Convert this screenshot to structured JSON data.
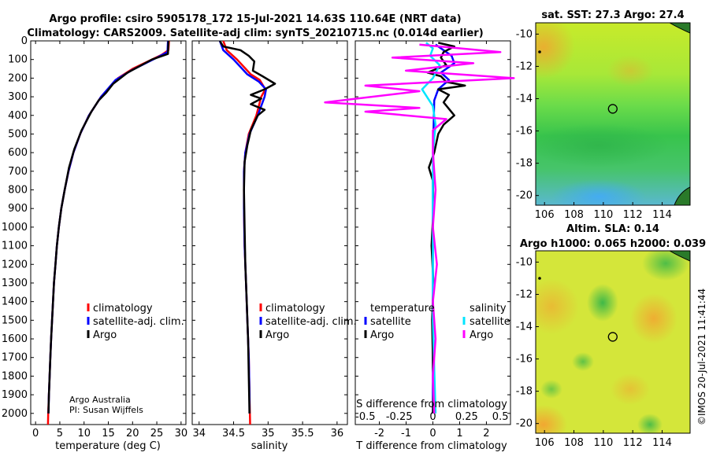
{
  "header": {
    "line1": "Argo profile: csiro 5905178_172 15-Jul-2021 14.63S 110.64E (NRT data)",
    "line2": "Climatology: CARS2009. Satellite-adj clim: synTS_20210715.nc (0.014d earlier)"
  },
  "colors": {
    "climatology": "#ff0000",
    "satellite": "#0000ff",
    "argo": "#000000",
    "sat_s": "#00e5ff",
    "argo_s": "#ff00ff"
  },
  "chart_data": [
    {
      "id": "temperature",
      "type": "line",
      "xlabel": "temperature (deg C)",
      "xlim": [
        -1,
        31
      ],
      "xticks": [
        0,
        5,
        10,
        15,
        20,
        25,
        30
      ],
      "ylim": [
        0,
        2060
      ],
      "yticks": [
        0,
        100,
        200,
        300,
        400,
        500,
        600,
        700,
        800,
        900,
        1000,
        1100,
        1200,
        1300,
        1400,
        1500,
        1600,
        1700,
        1800,
        1900,
        2000
      ],
      "legend": [
        "climatology",
        "satellite-adj. clim.",
        "Argo"
      ],
      "note": [
        "Argo Australia",
        "PI: Susan Wijffels"
      ],
      "series": [
        {
          "name": "climatology",
          "color": "#ff0000",
          "points": [
            [
              27.5,
              0
            ],
            [
              27.4,
              50
            ],
            [
              26,
              75
            ],
            [
              20,
              150
            ],
            [
              17,
              200
            ],
            [
              13.5,
              300
            ],
            [
              11,
              400
            ],
            [
              9.2,
              500
            ],
            [
              7.8,
              600
            ],
            [
              6.8,
              700
            ],
            [
              6,
              800
            ],
            [
              5.3,
              900
            ],
            [
              4.8,
              1000
            ],
            [
              4.4,
              1100
            ],
            [
              4.1,
              1200
            ],
            [
              3.8,
              1300
            ],
            [
              3.6,
              1400
            ],
            [
              3.4,
              1500
            ],
            [
              3.2,
              1600
            ],
            [
              3.05,
              1700
            ],
            [
              2.9,
              1800
            ],
            [
              2.75,
              1900
            ],
            [
              2.6,
              2000
            ],
            [
              2.55,
              2060
            ]
          ]
        },
        {
          "name": "satellite-adj. clim.",
          "color": "#0000ff",
          "points": [
            [
              27.3,
              0
            ],
            [
              27.2,
              60
            ],
            [
              25,
              90
            ],
            [
              20,
              155
            ],
            [
              16.5,
              210
            ],
            [
              13.5,
              300
            ],
            [
              11,
              400
            ],
            [
              9.2,
              500
            ],
            [
              7.8,
              600
            ],
            [
              6.8,
              700
            ],
            [
              6,
              800
            ],
            [
              5.3,
              900
            ],
            [
              4.8,
              1000
            ],
            [
              4.4,
              1100
            ],
            [
              4.1,
              1200
            ],
            [
              3.8,
              1300
            ],
            [
              3.6,
              1400
            ],
            [
              3.4,
              1500
            ],
            [
              3.2,
              1600
            ],
            [
              3.05,
              1700
            ],
            [
              2.9,
              1800
            ],
            [
              2.75,
              1900
            ],
            [
              2.65,
              2000
            ]
          ]
        },
        {
          "name": "Argo",
          "color": "#000000",
          "points": [
            [
              27.4,
              0
            ],
            [
              27.3,
              70
            ],
            [
              24,
              100
            ],
            [
              19,
              170
            ],
            [
              16,
              230
            ],
            [
              14.5,
              280
            ],
            [
              13,
              320
            ],
            [
              11.5,
              380
            ],
            [
              9.5,
              480
            ],
            [
              8,
              580
            ],
            [
              6.9,
              680
            ],
            [
              6,
              800
            ],
            [
              5.3,
              900
            ],
            [
              4.8,
              1000
            ],
            [
              4.4,
              1100
            ],
            [
              4.1,
              1200
            ],
            [
              3.8,
              1300
            ],
            [
              3.6,
              1400
            ],
            [
              3.4,
              1500
            ],
            [
              3.2,
              1600
            ],
            [
              3.05,
              1700
            ],
            [
              2.9,
              1800
            ],
            [
              2.75,
              1900
            ],
            [
              2.65,
              2000
            ]
          ]
        }
      ]
    },
    {
      "id": "salinity",
      "type": "line",
      "xlabel": "salinity",
      "xlim": [
        33.9,
        36.15
      ],
      "xticks": [
        34,
        34.5,
        35,
        35.5,
        36
      ],
      "ylim": [
        0,
        2060
      ],
      "legend": [
        "climatology",
        "satellite-adj. clim.",
        "Argo"
      ],
      "series": [
        {
          "name": "climatology",
          "color": "#ff0000",
          "points": [
            [
              34.35,
              0
            ],
            [
              34.4,
              50
            ],
            [
              34.55,
              100
            ],
            [
              34.75,
              180
            ],
            [
              34.88,
              210
            ],
            [
              34.96,
              260
            ],
            [
              34.9,
              300
            ],
            [
              34.83,
              400
            ],
            [
              34.72,
              500
            ],
            [
              34.67,
              600
            ],
            [
              34.65,
              700
            ],
            [
              34.65,
              900
            ],
            [
              34.66,
              1100
            ],
            [
              34.68,
              1300
            ],
            [
              34.7,
              1500
            ],
            [
              34.72,
              1700
            ],
            [
              34.73,
              1900
            ],
            [
              34.74,
              2060
            ]
          ]
        },
        {
          "name": "satellite-adj. clim.",
          "color": "#0000ff",
          "points": [
            [
              34.3,
              0
            ],
            [
              34.35,
              50
            ],
            [
              34.5,
              100
            ],
            [
              34.7,
              180
            ],
            [
              34.87,
              220
            ],
            [
              34.97,
              260
            ],
            [
              34.95,
              300
            ],
            [
              34.85,
              400
            ],
            [
              34.73,
              500
            ],
            [
              34.67,
              600
            ],
            [
              34.65,
              700
            ],
            [
              34.65,
              900
            ],
            [
              34.66,
              1100
            ],
            [
              34.68,
              1300
            ],
            [
              34.7,
              1500
            ],
            [
              34.72,
              1700
            ],
            [
              34.73,
              1900
            ],
            [
              34.73,
              2000
            ]
          ]
        },
        {
          "name": "Argo",
          "color": "#000000",
          "points": [
            [
              34.3,
              0
            ],
            [
              34.35,
              30
            ],
            [
              34.6,
              50
            ],
            [
              34.72,
              80
            ],
            [
              34.8,
              110
            ],
            [
              34.78,
              160
            ],
            [
              34.92,
              190
            ],
            [
              35.1,
              230
            ],
            [
              34.95,
              260
            ],
            [
              34.75,
              290
            ],
            [
              34.9,
              310
            ],
            [
              34.75,
              340
            ],
            [
              34.95,
              370
            ],
            [
              34.85,
              400
            ],
            [
              34.75,
              480
            ],
            [
              34.7,
              560
            ],
            [
              34.66,
              650
            ],
            [
              34.65,
              800
            ],
            [
              34.66,
              1000
            ],
            [
              34.67,
              1200
            ],
            [
              34.69,
              1400
            ],
            [
              34.71,
              1600
            ],
            [
              34.72,
              1800
            ],
            [
              34.73,
              2000
            ]
          ]
        }
      ]
    },
    {
      "id": "differences",
      "type": "line",
      "xlabel": "T difference from climatology",
      "xlabel_top": "S difference from climatology",
      "xlim": [
        -2.9,
        2.9
      ],
      "xticks": [
        -2,
        -1,
        0,
        1,
        2
      ],
      "xticks_top": [
        -0.5,
        -0.25,
        0,
        0.25,
        0.5
      ],
      "xtick_top_labels": [
        "-0.5",
        "-0.25",
        "0",
        "0.25",
        "0.5"
      ],
      "ylim": [
        0,
        2060
      ],
      "legend_t_title": "temperature",
      "legend_s_title": "salinity",
      "legend_t": [
        "satellite",
        "Argo"
      ],
      "legend_s": [
        "satellite",
        "Argo"
      ],
      "series": [
        {
          "name": "T satellite",
          "color": "#0000ff",
          "points": [
            [
              0.1,
              20
            ],
            [
              0.7,
              80
            ],
            [
              0.8,
              120
            ],
            [
              0.3,
              170
            ],
            [
              0.6,
              210
            ],
            [
              0.2,
              260
            ],
            [
              0.05,
              320
            ],
            [
              0.02,
              500
            ],
            [
              0,
              800
            ],
            [
              0,
              1200
            ],
            [
              0,
              1600
            ],
            [
              0,
              2000
            ]
          ]
        },
        {
          "name": "T Argo",
          "color": "#000000",
          "points": [
            [
              0.2,
              10
            ],
            [
              0.8,
              30
            ],
            [
              0.4,
              60
            ],
            [
              0.3,
              90
            ],
            [
              0.5,
              130
            ],
            [
              -0.2,
              170
            ],
            [
              0.3,
              190
            ],
            [
              0.5,
              220
            ],
            [
              1.2,
              240
            ],
            [
              0.2,
              260
            ],
            [
              0.6,
              290
            ],
            [
              0.4,
              330
            ],
            [
              0.8,
              400
            ],
            [
              0.4,
              450
            ],
            [
              0.2,
              500
            ],
            [
              0.05,
              600
            ],
            [
              -0.15,
              680
            ],
            [
              0,
              750
            ],
            [
              0.02,
              900
            ],
            [
              -0.05,
              1100
            ],
            [
              0.02,
              1300
            ],
            [
              -0.03,
              1500
            ],
            [
              0,
              1700
            ],
            [
              0.02,
              1900
            ],
            [
              0,
              2000
            ]
          ]
        },
        {
          "name": "S satellite",
          "color": "#00e5ff",
          "points": [
            [
              -0.05,
              10
            ],
            [
              0,
              40
            ],
            [
              -0.02,
              80
            ],
            [
              0.05,
              130
            ],
            [
              0,
              200
            ],
            [
              -0.08,
              260
            ],
            [
              0,
              350
            ],
            [
              0.02,
              450
            ],
            [
              0,
              600
            ],
            [
              0,
              1000
            ],
            [
              0,
              1500
            ],
            [
              0.02,
              2000
            ]
          ]
        },
        {
          "name": "S Argo",
          "color": "#ff00ff",
          "points": [
            [
              -0.1,
              20
            ],
            [
              0.5,
              60
            ],
            [
              -0.3,
              90
            ],
            [
              0.3,
              120
            ],
            [
              -0.2,
              160
            ],
            [
              0.6,
              200
            ],
            [
              -0.5,
              240
            ],
            [
              -0.1,
              270
            ],
            [
              -0.8,
              330
            ],
            [
              -0.1,
              360
            ],
            [
              -0.5,
              380
            ],
            [
              0.1,
              420
            ],
            [
              0,
              480
            ],
            [
              0,
              600
            ],
            [
              0.02,
              800
            ],
            [
              0,
              1000
            ],
            [
              0.03,
              1200
            ],
            [
              0,
              1400
            ],
            [
              0.02,
              1600
            ],
            [
              0,
              1800
            ],
            [
              0.01,
              2000
            ]
          ]
        }
      ]
    },
    {
      "id": "sst-map",
      "type": "heatmap",
      "title": "sat. SST: 27.3 Argo: 27.4",
      "xticks": [
        106,
        108,
        110,
        112,
        114
      ],
      "yticks": [
        -10,
        -12,
        -14,
        -16,
        -18,
        -20
      ],
      "xlim": [
        105.4,
        115.9
      ],
      "ylim": [
        -20.6,
        -9.3
      ],
      "argo_position": [
        110.64,
        -14.63
      ]
    },
    {
      "id": "sla-map",
      "type": "heatmap",
      "title": "Altim. SLA: 0.14",
      "subtitle": "Argo h1000: 0.065 h2000: 0.039",
      "xticks": [
        106,
        108,
        110,
        112,
        114
      ],
      "yticks": [
        -10,
        -12,
        -14,
        -16,
        -18,
        -20
      ],
      "xlim": [
        105.4,
        115.9
      ],
      "ylim": [
        -20.6,
        -9.3
      ],
      "argo_position": [
        110.64,
        -14.63
      ]
    }
  ],
  "credit": "©IMOS 20-Jul-2021 11:41:44"
}
